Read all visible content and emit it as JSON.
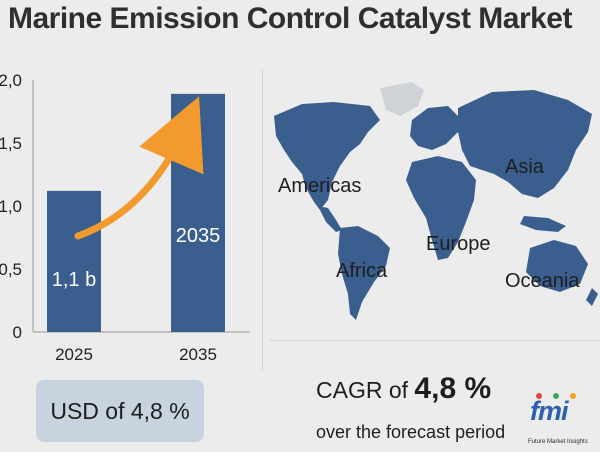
{
  "title": "Marine Emission Control Catalyst Market",
  "chart_data": {
    "type": "bar",
    "categories": [
      "2025",
      "2035"
    ],
    "values": [
      1.12,
      1.89
    ],
    "bar_labels": [
      "1,1 b",
      "2035"
    ],
    "yticks": [
      "0",
      "0,5",
      "1,0",
      "1,5",
      "2,0"
    ],
    "ylim": [
      0,
      2.0
    ],
    "bar_color": "#3a5f8f",
    "arrow_color": "#f29a2e"
  },
  "map": {
    "regions": [
      "Americas",
      "Asia",
      "Europe",
      "Africa",
      "Oceania"
    ],
    "land_color": "#3a5f8f",
    "inactive_color": "#cfd3d8"
  },
  "usd_label": "USD of 4,8 %",
  "cagr": {
    "prefix": "CAGR of ",
    "value": "4,8 %",
    "subtitle": "over the forecast period"
  },
  "logo": {
    "text": "fmi",
    "subtext": "Future Market Insights",
    "dot_colors": [
      "#e2483d",
      "#3aa655",
      "#f2a31b"
    ]
  }
}
